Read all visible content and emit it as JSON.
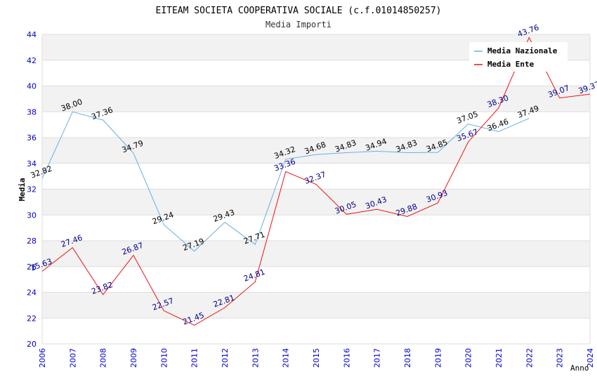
{
  "chart_data": {
    "type": "line",
    "title": "EITEAM SOCIETA COOPERATIVA SOCIALE (c.f.01014850257)",
    "subtitle": "Media Importi",
    "xlabel": "Anno",
    "ylabel": "Media",
    "ylim": [
      20,
      44
    ],
    "yticks": [
      "20",
      "22",
      "24",
      "26",
      "28",
      "30",
      "32",
      "34",
      "36",
      "38",
      "40",
      "42",
      "44"
    ],
    "categories": [
      "2006",
      "2007",
      "2008",
      "2009",
      "2010",
      "2011",
      "2012",
      "2013",
      "2014",
      "2015",
      "2016",
      "2017",
      "2018",
      "2019",
      "2020",
      "2021",
      "2022",
      "2023",
      "2024"
    ],
    "grid": true,
    "legend_position": "top-right",
    "series": [
      {
        "name": "Media Nazionale",
        "color": "#6aaee6",
        "label_color": "#000000",
        "values": [
          32.82,
          38.0,
          37.36,
          34.79,
          29.24,
          27.19,
          29.43,
          27.71,
          34.32,
          34.68,
          34.83,
          34.94,
          34.83,
          34.85,
          37.05,
          36.46,
          37.49,
          null,
          null
        ],
        "labels": [
          "32.82",
          "38.00",
          "37.36",
          "34.79",
          "29.24",
          "27.19",
          "29.43",
          "27.71",
          "34.32",
          "34.68",
          "34.83",
          "34.94",
          "34.83",
          "34.85",
          "37.05",
          "36.46",
          "37.49",
          "",
          ""
        ]
      },
      {
        "name": "Media Ente",
        "color": "#ee1111",
        "label_color": "#00008b",
        "values": [
          25.63,
          27.46,
          23.82,
          26.87,
          22.57,
          21.45,
          22.81,
          24.81,
          33.36,
          32.37,
          30.05,
          30.43,
          29.88,
          30.93,
          35.67,
          38.3,
          43.76,
          39.07,
          39.37
        ],
        "labels": [
          "25.63",
          "27.46",
          "23.82",
          "26.87",
          "22.57",
          "21.45",
          "22.81",
          "24.81",
          "33.36",
          "32.37",
          "30.05",
          "30.43",
          "29.88",
          "30.93",
          "35.67",
          "38.30",
          "43.76",
          "39.07",
          "39.37"
        ]
      }
    ],
    "colors": {
      "band": "#f2f2f2",
      "grid": "#dddddd",
      "axis_tick_text": "#0000cc",
      "title_text": "#000000",
      "subtitle_text": "#333333"
    }
  }
}
